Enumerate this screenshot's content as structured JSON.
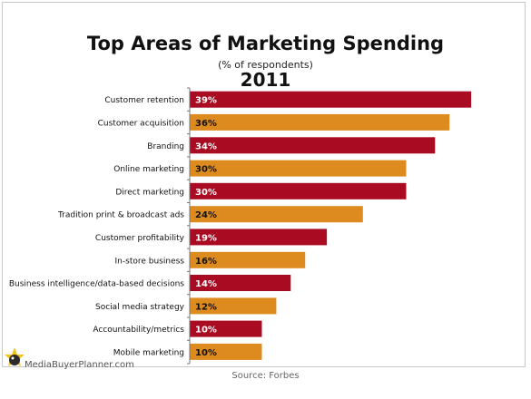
{
  "chart_data": {
    "type": "bar",
    "orientation": "horizontal",
    "title": "Top Areas of Marketing Spending",
    "subtitle": "(% of respondents)",
    "year": "2011",
    "categories": [
      "Customer retention",
      "Customer acquisition",
      "Branding",
      "Online marketing",
      "Direct marketing",
      "Tradition print & broadcast ads",
      "Customer profitability",
      "In-store business",
      "Business intelligence/data-based decisions",
      "Social media strategy",
      "Accountability/metrics",
      "Mobile marketing"
    ],
    "values": [
      39,
      36,
      34,
      30,
      30,
      24,
      19,
      16,
      14,
      12,
      10,
      10
    ],
    "value_labels": [
      "39%",
      "36%",
      "34%",
      "30%",
      "30%",
      "24%",
      "19%",
      "16%",
      "14%",
      "12%",
      "10%",
      "10%"
    ],
    "xlim": [
      0,
      40
    ],
    "grid": false,
    "legend": "none",
    "colors": [
      "#a80b22",
      "#dd8a1e"
    ],
    "label_colors": [
      "#ffffff",
      "#111111"
    ]
  },
  "footer": {
    "brand": "MediaBuyerPlanner.com",
    "source": "Source: Forbes"
  },
  "icons": {
    "brand_logo": "media-buyer-planner-logo-icon"
  }
}
